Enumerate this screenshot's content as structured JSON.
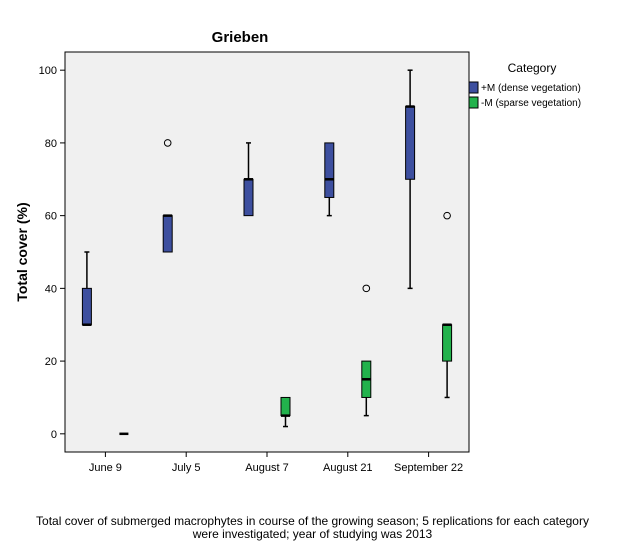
{
  "chart_data": {
    "type": "boxplot",
    "title": "Grieben",
    "xlabel": "",
    "ylabel": "Total cover (%)",
    "ylim": [
      -5,
      105
    ],
    "yticks": [
      0,
      20,
      40,
      60,
      80,
      100
    ],
    "grid": false,
    "legend": {
      "title": "Category",
      "placement": "right"
    },
    "categories": [
      "June 9",
      "July 5",
      "August 7",
      "August 21",
      "September 22"
    ],
    "series": [
      {
        "name": "+M (dense vegetation)",
        "color": "#3d4f9f",
        "boxes": [
          {
            "whisker_low": 30,
            "q1": 30,
            "median": 30,
            "q3": 40,
            "whisker_high": 50,
            "outliers": []
          },
          {
            "whisker_low": 50,
            "q1": 50,
            "median": 60,
            "q3": 60,
            "whisker_high": 60,
            "outliers": [
              80
            ]
          },
          {
            "whisker_low": 60,
            "q1": 60,
            "median": 70,
            "q3": 70,
            "whisker_high": 80,
            "outliers": []
          },
          {
            "whisker_low": 60,
            "q1": 65,
            "median": 70,
            "q3": 80,
            "whisker_high": 80,
            "outliers": []
          },
          {
            "whisker_low": 40,
            "q1": 70,
            "median": 90,
            "q3": 90,
            "whisker_high": 100,
            "outliers": []
          }
        ]
      },
      {
        "name": "-M (sparse vegetation)",
        "color": "#22b24c",
        "boxes": [
          {
            "whisker_low": 0,
            "q1": 0,
            "median": 0,
            "q3": 0,
            "whisker_high": 0,
            "outliers": []
          },
          null,
          {
            "whisker_low": 2,
            "q1": 5,
            "median": 5,
            "q3": 10,
            "whisker_high": 10,
            "outliers": []
          },
          {
            "whisker_low": 5,
            "q1": 10,
            "median": 15,
            "q3": 20,
            "whisker_high": 20,
            "outliers": [
              40
            ]
          },
          {
            "whisker_low": 10,
            "q1": 20,
            "median": 30,
            "q3": 30,
            "whisker_high": 30,
            "outliers": [
              60
            ]
          }
        ]
      }
    ]
  },
  "caption": {
    "line1": "Total cover of submerged macrophytes in course of the growing season; 5 replications for each category",
    "line2": "were investigated; year of studying was 2013"
  }
}
